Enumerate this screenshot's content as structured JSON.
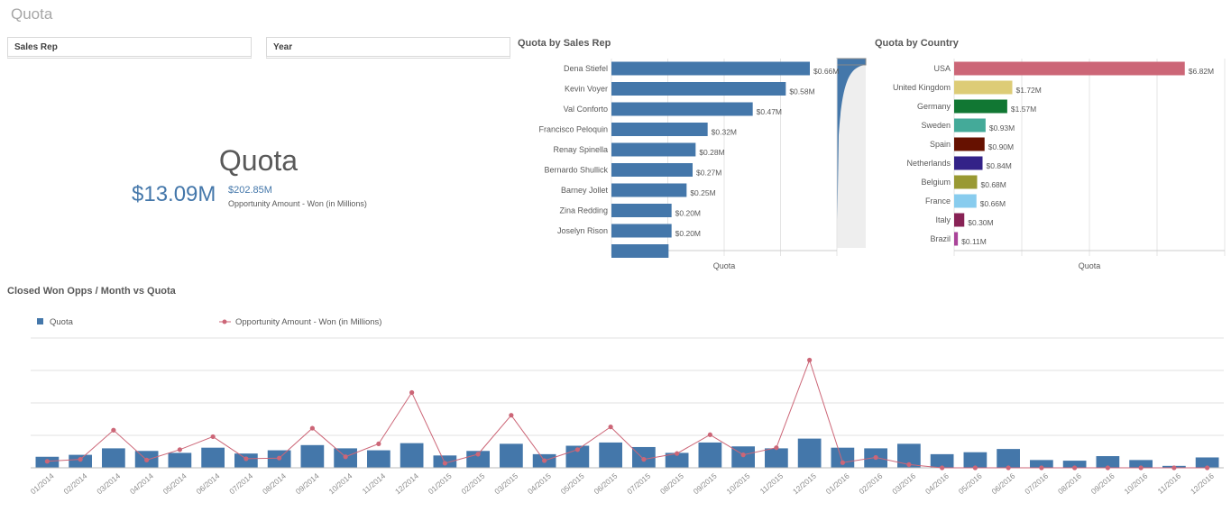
{
  "sheet_title": "Quota",
  "filters": [
    {
      "label": "Sales Rep"
    },
    {
      "label": "Year"
    }
  ],
  "kpi": {
    "title": "Quota",
    "main_value": "$13.09M",
    "secondary_value": "$202.85M",
    "secondary_label": "Opportunity Amount - Won (in Millions)"
  },
  "colors": {
    "bar_blue": "#4477aa",
    "line_pink": "#cc6677",
    "kpi_blue": "#4477aa"
  },
  "chart_data": [
    {
      "type": "bar",
      "title": "Quota by Sales Rep",
      "xlabel": "Quota",
      "orientation": "horizontal",
      "categories": [
        "Dena Stiefel",
        "Kevin Voyer",
        "Val Conforto",
        "Francisco Peloquin",
        "Renay Spinella",
        "Bernardo Shullick",
        "Barney Jollet",
        "Zina Redding",
        "Joselyn Rison"
      ],
      "values": [
        0.66,
        0.58,
        0.47,
        0.32,
        0.28,
        0.27,
        0.25,
        0.2,
        0.2
      ],
      "value_labels": [
        "$0.66M",
        "$0.58M",
        "$0.47M",
        "$0.32M",
        "$0.28M",
        "$0.27M",
        "$0.25M",
        "$0.20M",
        "$0.20M"
      ],
      "xlim": [
        0,
        0.75
      ],
      "color": "#4477aa",
      "grid": true
    },
    {
      "type": "bar",
      "title": "Quota by Country",
      "xlabel": "Quota",
      "orientation": "horizontal",
      "categories": [
        "USA",
        "United Kingdom",
        "Germany",
        "Sweden",
        "Spain",
        "Netherlands",
        "Belgium",
        "France",
        "Italy",
        "Brazil"
      ],
      "values": [
        6.82,
        1.72,
        1.57,
        0.93,
        0.9,
        0.84,
        0.68,
        0.66,
        0.3,
        0.11
      ],
      "value_labels": [
        "$6.82M",
        "$1.72M",
        "$1.57M",
        "$0.93M",
        "$0.90M",
        "$0.84M",
        "$0.68M",
        "$0.66M",
        "$0.30M",
        "$0.11M"
      ],
      "colors": [
        "#cc6677",
        "#ddcc77",
        "#117733",
        "#44aa99",
        "#661100",
        "#332288",
        "#999933",
        "#88ccee",
        "#882255",
        "#aa4499"
      ],
      "xlim": [
        0,
        8
      ],
      "grid": true
    },
    {
      "type": "bar",
      "title": "Closed Won Opps / Month vs Quota",
      "legend": [
        "Quota",
        "Opportunity Amount - Won (in Millions)"
      ],
      "legend_position": "top-left",
      "categories": [
        "01/2014",
        "02/2014",
        "03/2014",
        "04/2014",
        "05/2014",
        "06/2014",
        "07/2014",
        "08/2014",
        "09/2014",
        "10/2014",
        "11/2014",
        "12/2014",
        "01/2015",
        "02/2015",
        "03/2015",
        "04/2015",
        "05/2015",
        "06/2015",
        "07/2015",
        "08/2015",
        "09/2015",
        "10/2015",
        "11/2015",
        "12/2015",
        "01/2016",
        "02/2016",
        "03/2016",
        "04/2016",
        "05/2016",
        "06/2016",
        "07/2016",
        "08/2016",
        "09/2016",
        "10/2016",
        "11/2016",
        "12/2016"
      ],
      "series": [
        {
          "name": "Quota",
          "type": "bar",
          "color": "#4477aa",
          "values": [
            0.17,
            0.2,
            0.3,
            0.26,
            0.23,
            0.31,
            0.22,
            0.27,
            0.35,
            0.3,
            0.27,
            0.38,
            0.19,
            0.26,
            0.37,
            0.21,
            0.34,
            0.39,
            0.32,
            0.23,
            0.39,
            0.33,
            0.3,
            0.45,
            0.31,
            0.3,
            0.37,
            0.21,
            0.24,
            0.29,
            0.12,
            0.11,
            0.18,
            0.12,
            0.03,
            0.16
          ]
        },
        {
          "name": "Opportunity Amount - Won (in Millions)",
          "type": "line",
          "color": "#cc6677",
          "values": [
            0.1,
            0.13,
            0.58,
            0.12,
            0.28,
            0.48,
            0.14,
            0.15,
            0.61,
            0.17,
            0.37,
            1.16,
            0.07,
            0.21,
            0.81,
            0.11,
            0.28,
            0.63,
            0.13,
            0.22,
            0.51,
            0.2,
            0.31,
            1.66,
            0.08,
            0.16,
            0.05,
            0.0,
            0.0,
            0.0,
            0.0,
            0.0,
            0.0,
            0.0,
            0.0,
            0.0
          ]
        }
      ],
      "ylim": [
        0,
        2
      ],
      "grid": true
    }
  ]
}
